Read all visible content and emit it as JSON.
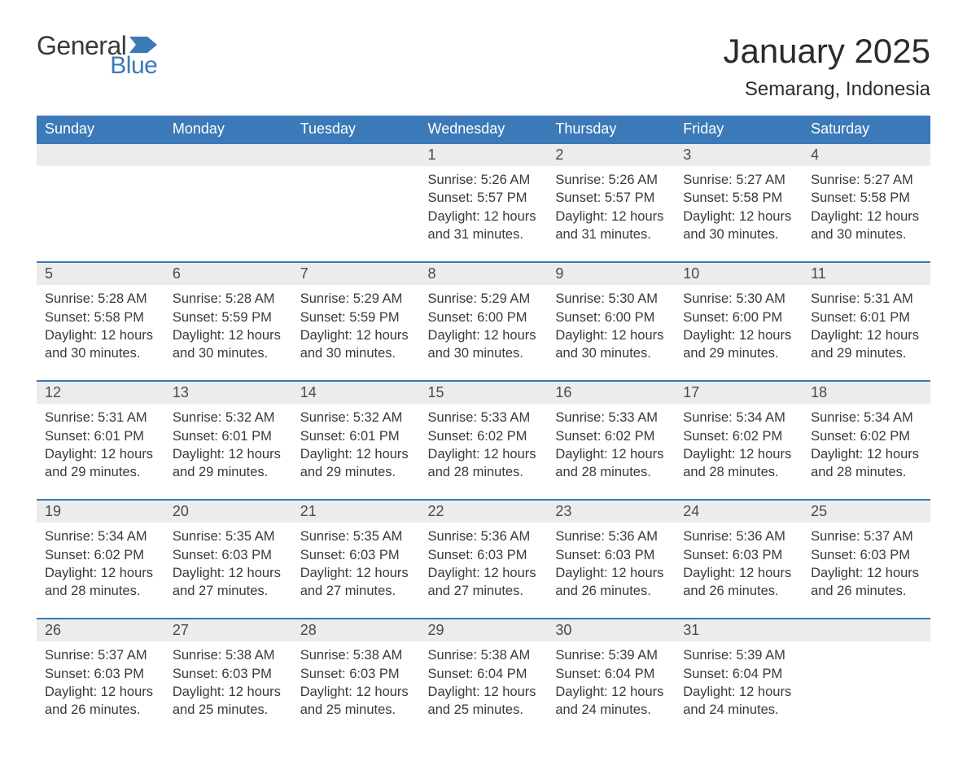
{
  "logo": {
    "general": "General",
    "blue": "Blue",
    "flag_color": "#3b79b8"
  },
  "title": "January 2025",
  "location": "Semarang, Indonesia",
  "colors": {
    "header_bg": "#3b79b8",
    "header_text": "#ffffff",
    "daynum_bg": "#ececec",
    "border_top": "#3b79b8",
    "body_text": "#3a3a3a",
    "page_bg": "#ffffff"
  },
  "typography": {
    "title_fontsize": 42,
    "location_fontsize": 24,
    "header_fontsize": 18,
    "daynum_fontsize": 18,
    "cell_fontsize": 16.5
  },
  "weekdays": [
    "Sunday",
    "Monday",
    "Tuesday",
    "Wednesday",
    "Thursday",
    "Friday",
    "Saturday"
  ],
  "weeks": [
    [
      {
        "day": "",
        "sunrise": "",
        "sunset": "",
        "daylight": ""
      },
      {
        "day": "",
        "sunrise": "",
        "sunset": "",
        "daylight": ""
      },
      {
        "day": "",
        "sunrise": "",
        "sunset": "",
        "daylight": ""
      },
      {
        "day": "1",
        "sunrise": "Sunrise: 5:26 AM",
        "sunset": "Sunset: 5:57 PM",
        "daylight": "Daylight: 12 hours and 31 minutes."
      },
      {
        "day": "2",
        "sunrise": "Sunrise: 5:26 AM",
        "sunset": "Sunset: 5:57 PM",
        "daylight": "Daylight: 12 hours and 31 minutes."
      },
      {
        "day": "3",
        "sunrise": "Sunrise: 5:27 AM",
        "sunset": "Sunset: 5:58 PM",
        "daylight": "Daylight: 12 hours and 30 minutes."
      },
      {
        "day": "4",
        "sunrise": "Sunrise: 5:27 AM",
        "sunset": "Sunset: 5:58 PM",
        "daylight": "Daylight: 12 hours and 30 minutes."
      }
    ],
    [
      {
        "day": "5",
        "sunrise": "Sunrise: 5:28 AM",
        "sunset": "Sunset: 5:58 PM",
        "daylight": "Daylight: 12 hours and 30 minutes."
      },
      {
        "day": "6",
        "sunrise": "Sunrise: 5:28 AM",
        "sunset": "Sunset: 5:59 PM",
        "daylight": "Daylight: 12 hours and 30 minutes."
      },
      {
        "day": "7",
        "sunrise": "Sunrise: 5:29 AM",
        "sunset": "Sunset: 5:59 PM",
        "daylight": "Daylight: 12 hours and 30 minutes."
      },
      {
        "day": "8",
        "sunrise": "Sunrise: 5:29 AM",
        "sunset": "Sunset: 6:00 PM",
        "daylight": "Daylight: 12 hours and 30 minutes."
      },
      {
        "day": "9",
        "sunrise": "Sunrise: 5:30 AM",
        "sunset": "Sunset: 6:00 PM",
        "daylight": "Daylight: 12 hours and 30 minutes."
      },
      {
        "day": "10",
        "sunrise": "Sunrise: 5:30 AM",
        "sunset": "Sunset: 6:00 PM",
        "daylight": "Daylight: 12 hours and 29 minutes."
      },
      {
        "day": "11",
        "sunrise": "Sunrise: 5:31 AM",
        "sunset": "Sunset: 6:01 PM",
        "daylight": "Daylight: 12 hours and 29 minutes."
      }
    ],
    [
      {
        "day": "12",
        "sunrise": "Sunrise: 5:31 AM",
        "sunset": "Sunset: 6:01 PM",
        "daylight": "Daylight: 12 hours and 29 minutes."
      },
      {
        "day": "13",
        "sunrise": "Sunrise: 5:32 AM",
        "sunset": "Sunset: 6:01 PM",
        "daylight": "Daylight: 12 hours and 29 minutes."
      },
      {
        "day": "14",
        "sunrise": "Sunrise: 5:32 AM",
        "sunset": "Sunset: 6:01 PM",
        "daylight": "Daylight: 12 hours and 29 minutes."
      },
      {
        "day": "15",
        "sunrise": "Sunrise: 5:33 AM",
        "sunset": "Sunset: 6:02 PM",
        "daylight": "Daylight: 12 hours and 28 minutes."
      },
      {
        "day": "16",
        "sunrise": "Sunrise: 5:33 AM",
        "sunset": "Sunset: 6:02 PM",
        "daylight": "Daylight: 12 hours and 28 minutes."
      },
      {
        "day": "17",
        "sunrise": "Sunrise: 5:34 AM",
        "sunset": "Sunset: 6:02 PM",
        "daylight": "Daylight: 12 hours and 28 minutes."
      },
      {
        "day": "18",
        "sunrise": "Sunrise: 5:34 AM",
        "sunset": "Sunset: 6:02 PM",
        "daylight": "Daylight: 12 hours and 28 minutes."
      }
    ],
    [
      {
        "day": "19",
        "sunrise": "Sunrise: 5:34 AM",
        "sunset": "Sunset: 6:02 PM",
        "daylight": "Daylight: 12 hours and 28 minutes."
      },
      {
        "day": "20",
        "sunrise": "Sunrise: 5:35 AM",
        "sunset": "Sunset: 6:03 PM",
        "daylight": "Daylight: 12 hours and 27 minutes."
      },
      {
        "day": "21",
        "sunrise": "Sunrise: 5:35 AM",
        "sunset": "Sunset: 6:03 PM",
        "daylight": "Daylight: 12 hours and 27 minutes."
      },
      {
        "day": "22",
        "sunrise": "Sunrise: 5:36 AM",
        "sunset": "Sunset: 6:03 PM",
        "daylight": "Daylight: 12 hours and 27 minutes."
      },
      {
        "day": "23",
        "sunrise": "Sunrise: 5:36 AM",
        "sunset": "Sunset: 6:03 PM",
        "daylight": "Daylight: 12 hours and 26 minutes."
      },
      {
        "day": "24",
        "sunrise": "Sunrise: 5:36 AM",
        "sunset": "Sunset: 6:03 PM",
        "daylight": "Daylight: 12 hours and 26 minutes."
      },
      {
        "day": "25",
        "sunrise": "Sunrise: 5:37 AM",
        "sunset": "Sunset: 6:03 PM",
        "daylight": "Daylight: 12 hours and 26 minutes."
      }
    ],
    [
      {
        "day": "26",
        "sunrise": "Sunrise: 5:37 AM",
        "sunset": "Sunset: 6:03 PM",
        "daylight": "Daylight: 12 hours and 26 minutes."
      },
      {
        "day": "27",
        "sunrise": "Sunrise: 5:38 AM",
        "sunset": "Sunset: 6:03 PM",
        "daylight": "Daylight: 12 hours and 25 minutes."
      },
      {
        "day": "28",
        "sunrise": "Sunrise: 5:38 AM",
        "sunset": "Sunset: 6:03 PM",
        "daylight": "Daylight: 12 hours and 25 minutes."
      },
      {
        "day": "29",
        "sunrise": "Sunrise: 5:38 AM",
        "sunset": "Sunset: 6:04 PM",
        "daylight": "Daylight: 12 hours and 25 minutes."
      },
      {
        "day": "30",
        "sunrise": "Sunrise: 5:39 AM",
        "sunset": "Sunset: 6:04 PM",
        "daylight": "Daylight: 12 hours and 24 minutes."
      },
      {
        "day": "31",
        "sunrise": "Sunrise: 5:39 AM",
        "sunset": "Sunset: 6:04 PM",
        "daylight": "Daylight: 12 hours and 24 minutes."
      },
      {
        "day": "",
        "sunrise": "",
        "sunset": "",
        "daylight": ""
      }
    ]
  ]
}
